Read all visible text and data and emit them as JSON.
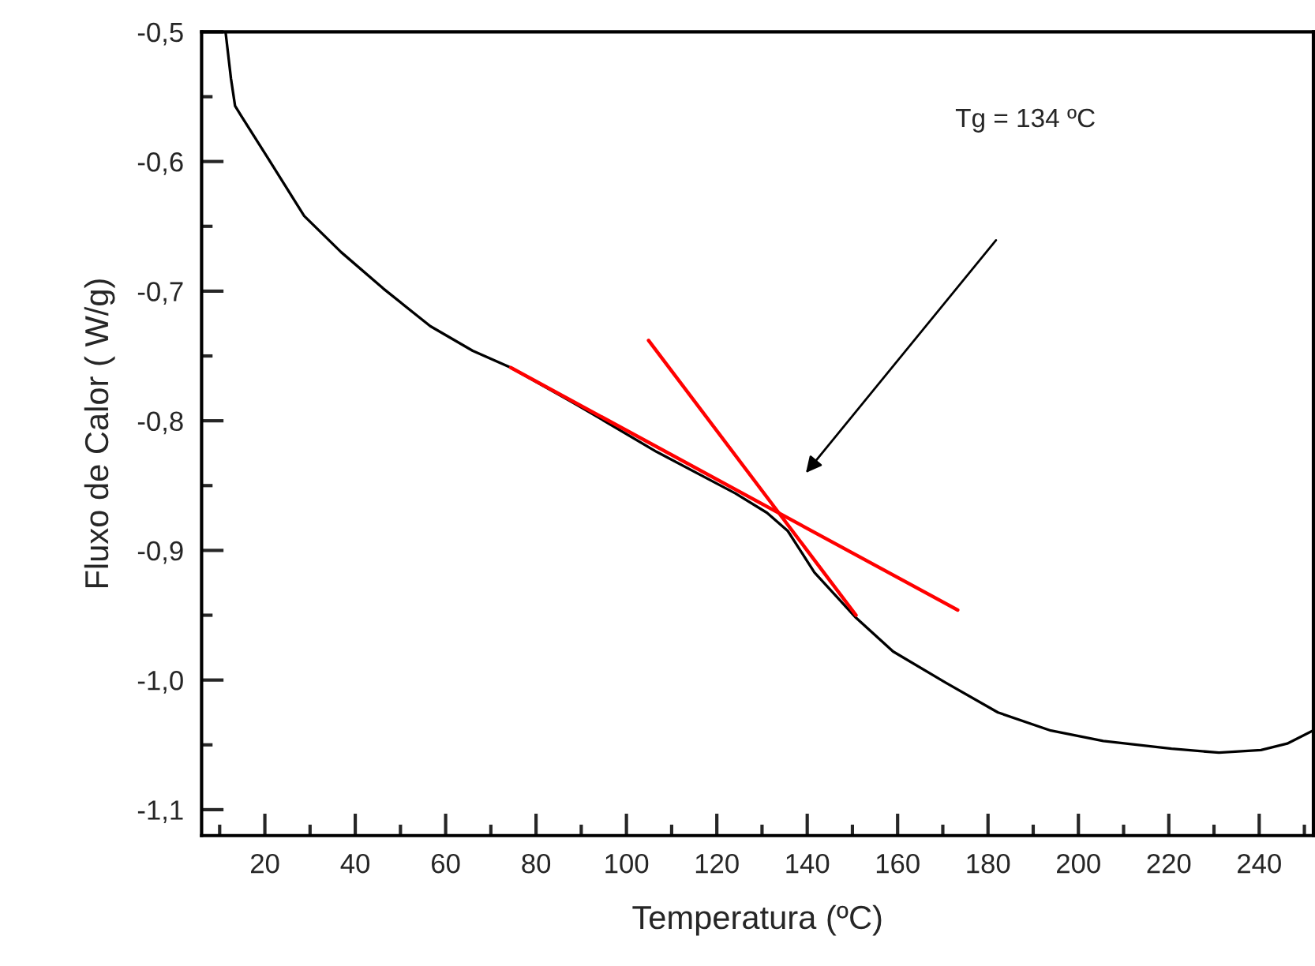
{
  "chart_data": {
    "type": "line",
    "xlabel": "Temperatura (ºC)",
    "ylabel": "Fluxo de Calor ( W/g)",
    "xlim": [
      6,
      252
    ],
    "ylim": [
      -1.12,
      -0.5
    ],
    "xticks": [
      20,
      40,
      60,
      80,
      100,
      120,
      140,
      160,
      180,
      200,
      220,
      240
    ],
    "yticks": [
      {
        "value": -1.1,
        "label": "-1,1"
      },
      {
        "value": -1.0,
        "label": "-1,0"
      },
      {
        "value": -0.9,
        "label": "-0,9"
      },
      {
        "value": -0.8,
        "label": "-0,8"
      },
      {
        "value": -0.7,
        "label": "-0,7"
      },
      {
        "value": -0.6,
        "label": "-0,6"
      },
      {
        "value": -0.5,
        "label": "-0,5"
      }
    ],
    "grid": false,
    "legend": false,
    "marker": "none",
    "line_style": "solid",
    "series": [
      {
        "color": "#000000",
        "x": [
          11.3,
          12.5,
          13.4,
          14.8,
          20.6,
          28.7,
          36.9,
          46.2,
          56.6,
          66.0,
          74.4,
          89.2,
          106.7,
          124.1,
          131.1,
          135.7,
          141.6,
          150.8,
          159.0,
          170.6,
          182.2,
          193.9,
          205.5,
          220.6,
          231.1,
          240.4,
          246.2,
          251.9
        ],
        "values": [
          -0.5,
          -0.536,
          -0.557,
          -0.565,
          -0.597,
          -0.642,
          -0.67,
          -0.698,
          -0.727,
          -0.746,
          -0.759,
          -0.788,
          -0.824,
          -0.856,
          -0.871,
          -0.885,
          -0.917,
          -0.952,
          -0.978,
          -1.002,
          -1.025,
          -1.039,
          -1.047,
          -1.053,
          -1.056,
          -1.054,
          -1.049,
          -1.039
        ]
      },
      {
        "color": "#ff0000",
        "x": [
          74.4,
          173.3
        ],
        "values": [
          -0.759,
          -0.946
        ]
      },
      {
        "color": "#ff0000",
        "x": [
          104.9,
          150.8
        ],
        "values": [
          -0.738,
          -0.95
        ]
      }
    ],
    "annotations": [
      "Tg = 134 ºC"
    ]
  }
}
